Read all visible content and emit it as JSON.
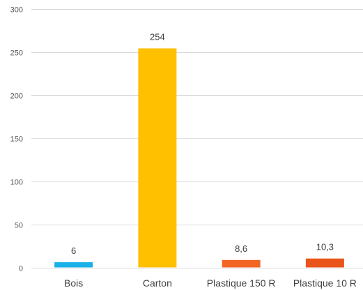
{
  "chart_data": {
    "type": "bar",
    "title": "",
    "xlabel": "",
    "ylabel": "",
    "categories": [
      "Bois",
      "Carton",
      "Plastique 150 R",
      "Plastique 10 R"
    ],
    "values": [
      6,
      254,
      8.6,
      10.3
    ],
    "data_labels": [
      "6",
      "254",
      "8,6",
      "10,3"
    ],
    "bar_colors": [
      "#1ab0e8",
      "#ffc000",
      "#f26522",
      "#e8541a"
    ],
    "ylim": [
      0,
      300
    ],
    "y_ticks": [
      0,
      50,
      100,
      150,
      200,
      250,
      300
    ],
    "y_tick_labels": [
      "0",
      "50",
      "100",
      "150",
      "200",
      "250",
      "300"
    ],
    "grid": true,
    "legend": "none"
  }
}
